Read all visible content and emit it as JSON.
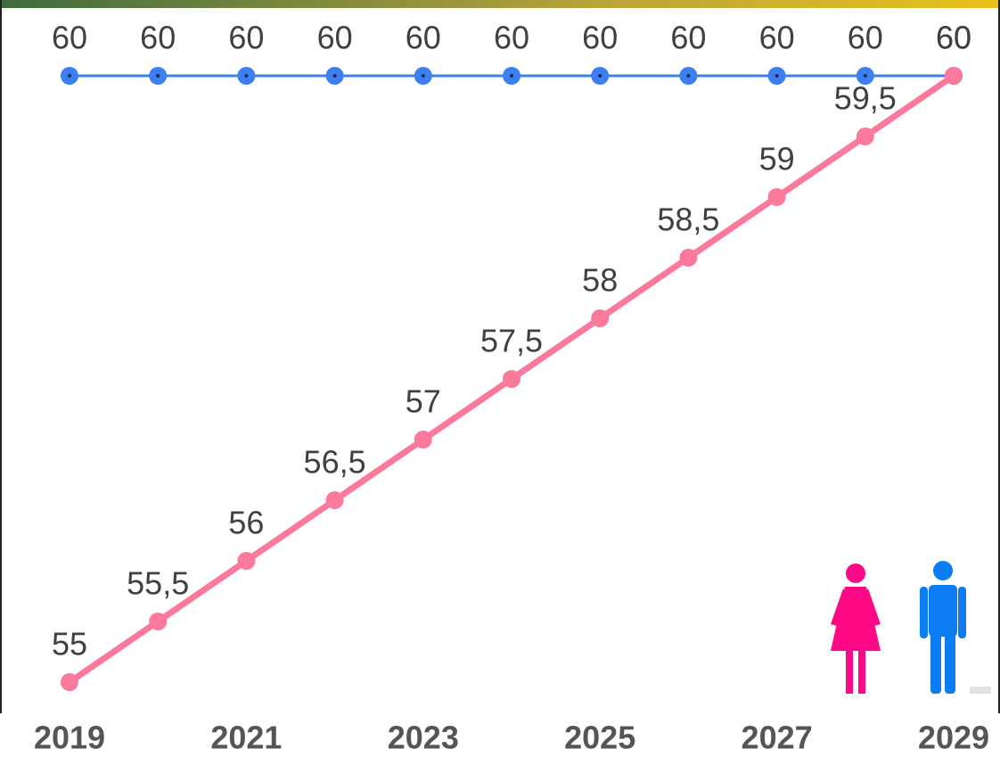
{
  "chart_data": {
    "type": "line",
    "categories": [
      "2019",
      null,
      "2021",
      null,
      "2023",
      null,
      "2025",
      null,
      "2027",
      null,
      "2029"
    ],
    "series": [
      {
        "color": "#3d7ef0",
        "values": [
          60,
          60,
          60,
          60,
          60,
          60,
          60,
          60,
          60,
          60,
          60
        ]
      },
      {
        "color": "#fb7a9b",
        "values": [
          55,
          55.5,
          56,
          56.5,
          57,
          57.5,
          58,
          58.5,
          59,
          59.5,
          60
        ],
        "value_labels": [
          "55",
          "55,5",
          "56",
          "56,5",
          "57",
          "57,5",
          "58",
          "58,5",
          "59",
          "59,5",
          "60"
        ]
      }
    ]
  }
}
